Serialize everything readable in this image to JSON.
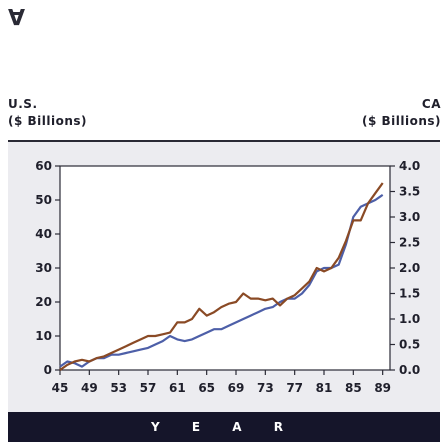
{
  "mark": "∀",
  "chart_data": {
    "type": "line",
    "title": "",
    "left_axis_label": [
      "U.S.",
      "($ Billions)"
    ],
    "right_axis_label": [
      "CA",
      "($ Billions)"
    ],
    "xlabel": "Y E A R",
    "x_ticks": [
      "45",
      "49",
      "53",
      "57",
      "61",
      "65",
      "69",
      "73",
      "77",
      "81",
      "85",
      "89"
    ],
    "left_ticks": [
      "0",
      "10",
      "20",
      "30",
      "40",
      "50",
      "60"
    ],
    "right_ticks": [
      "0.0",
      "0.5",
      "1.0",
      "1.5",
      "2.0",
      "2.5",
      "3.0",
      "3.5",
      "4.0"
    ],
    "xlim": [
      1945,
      1990
    ],
    "ylim_left": [
      0,
      60
    ],
    "ylim_right": [
      0,
      4
    ],
    "grid": false,
    "legend": "none",
    "series": [
      {
        "axis": "left",
        "color": "#4d5fa8",
        "x": [
          1945,
          1946,
          1947,
          1948,
          1949,
          1950,
          1951,
          1952,
          1953,
          1954,
          1955,
          1956,
          1957,
          1958,
          1959,
          1960,
          1961,
          1962,
          1963,
          1964,
          1965,
          1966,
          1967,
          1968,
          1969,
          1970,
          1971,
          1972,
          1973,
          1974,
          1975,
          1976,
          1977,
          1978,
          1979,
          1980,
          1981,
          1982,
          1983,
          1984,
          1985,
          1986,
          1987,
          1988,
          1989
        ],
        "values": [
          1,
          2.5,
          2,
          1,
          2.5,
          3.5,
          3.5,
          4.5,
          4.5,
          5,
          5.5,
          6,
          6.5,
          7.5,
          8.5,
          10,
          9,
          8.5,
          9,
          10,
          11,
          12,
          12,
          13,
          14,
          15,
          16,
          17,
          18,
          18.5,
          20,
          21,
          21,
          22.5,
          25,
          29,
          30,
          30,
          31,
          37,
          45,
          48,
          49,
          50,
          51.5
        ]
      },
      {
        "axis": "left",
        "color": "#8a4a25",
        "x": [
          1945,
          1946,
          1947,
          1948,
          1949,
          1950,
          1951,
          1952,
          1953,
          1954,
          1955,
          1956,
          1957,
          1958,
          1959,
          1960,
          1961,
          1962,
          1963,
          1964,
          1965,
          1966,
          1967,
          1968,
          1969,
          1970,
          1971,
          1972,
          1973,
          1974,
          1975,
          1976,
          1977,
          1978,
          1979,
          1980,
          1981,
          1982,
          1983,
          1984,
          1985,
          1986,
          1987,
          1988,
          1989
        ],
        "values": [
          0,
          1.5,
          2.5,
          3,
          2.5,
          3.5,
          4,
          5,
          6,
          7,
          8,
          9,
          10,
          10,
          10.5,
          11,
          14,
          14,
          15,
          18,
          16,
          17,
          18.5,
          19.5,
          20,
          22.5,
          21,
          21,
          20.5,
          21,
          19,
          21,
          22,
          24,
          26,
          30,
          29,
          30,
          33,
          38,
          44,
          44,
          49,
          52,
          55
        ]
      }
    ]
  }
}
